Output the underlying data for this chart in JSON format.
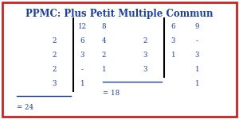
{
  "title": "PPMC: Plus Petit Multiple Commun",
  "title_color": "#1a3faa",
  "title_fontsize": 8.5,
  "bg_color": "#ffffff",
  "border_color": "#cc2222",
  "font_color": "#1a3faa",
  "left_table": {
    "divisors": [
      "2",
      "2",
      "2",
      "3"
    ],
    "col1": [
      "12",
      "6",
      "3",
      "-",
      "1"
    ],
    "col2": [
      "8",
      "4",
      "2",
      "1",
      ""
    ],
    "result": "= 24"
  },
  "right_table": {
    "divisors": [
      "2",
      "3",
      "3"
    ],
    "col1": [
      "6",
      "3",
      "1",
      ""
    ],
    "col2": [
      "9",
      "-",
      "3",
      "1"
    ],
    "result": "= 18"
  }
}
